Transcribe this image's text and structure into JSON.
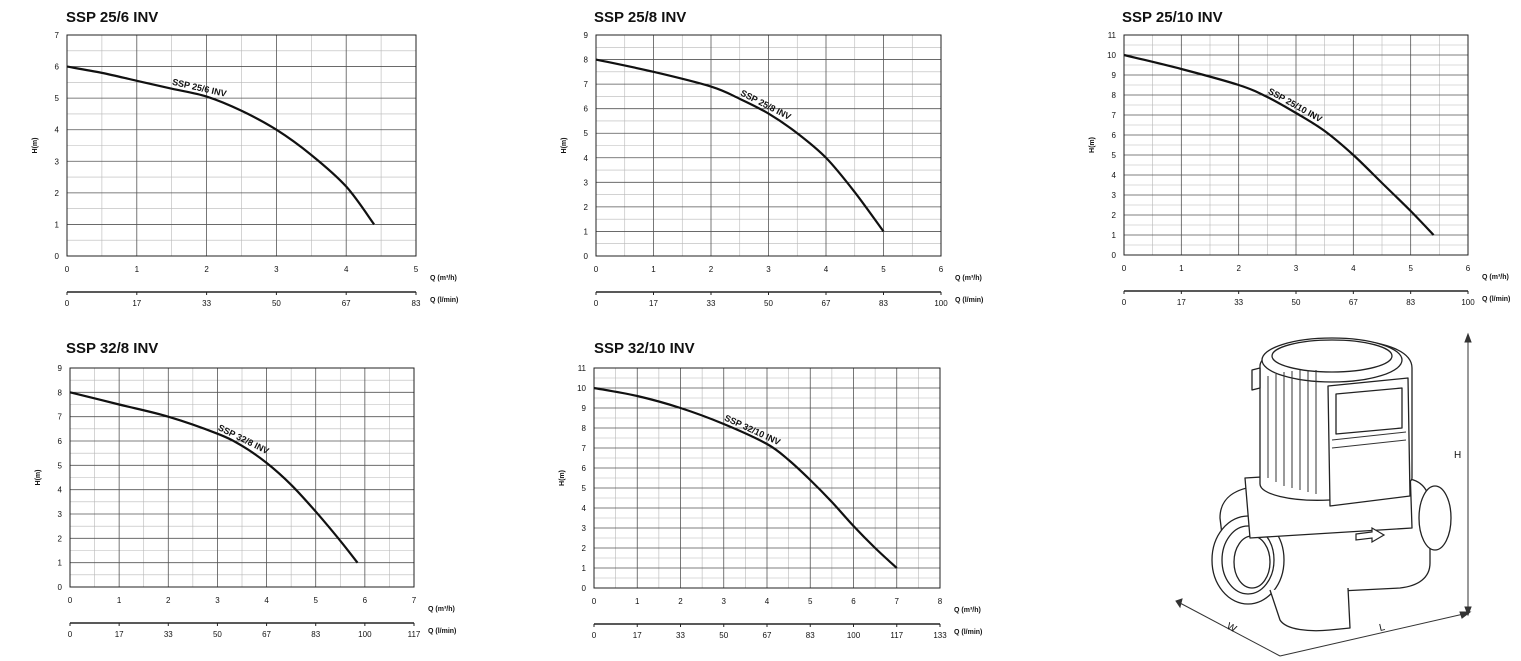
{
  "chart_data": [
    {
      "type": "line",
      "title": "SSP 25/6 INV",
      "xlabel": "Q (m³/h)",
      "x2label": "Q (l/min)",
      "ylabel": "H(m)",
      "xlim": [
        0,
        5
      ],
      "ylim": [
        0,
        7
      ],
      "x_ticks": [
        0,
        1,
        2,
        3,
        4,
        5
      ],
      "y_ticks": [
        0,
        1,
        2,
        3,
        4,
        5,
        6,
        7
      ],
      "x2_ticks": [
        "0",
        "17",
        "33",
        "50",
        "67",
        "83"
      ],
      "grid": true,
      "series": [
        {
          "name": "SSP 25/6 INV",
          "x": [
            0,
            0.5,
            1,
            1.5,
            2,
            2.5,
            3,
            3.5,
            4,
            4.4
          ],
          "y": [
            6,
            5.8,
            5.55,
            5.3,
            5.05,
            4.6,
            4.0,
            3.2,
            2.2,
            1.0
          ]
        }
      ]
    },
    {
      "type": "line",
      "title": "SSP 25/8 INV",
      "xlabel": "Q (m³/h)",
      "x2label": "Q (l/min)",
      "ylabel": "H(m)",
      "xlim": [
        0,
        6
      ],
      "ylim": [
        0,
        9
      ],
      "x_ticks": [
        0,
        1,
        2,
        3,
        4,
        5,
        6
      ],
      "y_ticks": [
        0,
        1,
        2,
        3,
        4,
        5,
        6,
        7,
        8,
        9
      ],
      "x2_ticks": [
        "0",
        "17",
        "33",
        "50",
        "67",
        "83",
        "100"
      ],
      "grid": true,
      "series": [
        {
          "name": "SSP 25/8 INV",
          "x": [
            0,
            1,
            2,
            2.5,
            3,
            3.5,
            4,
            4.5,
            5
          ],
          "y": [
            8,
            7.5,
            6.9,
            6.4,
            5.8,
            5.0,
            4.0,
            2.6,
            1.0
          ]
        }
      ]
    },
    {
      "type": "line",
      "title": "SSP 25/10 INV",
      "xlabel": "Q (m³/h)",
      "x2label": "Q (l/min)",
      "ylabel": "H(m)",
      "xlim": [
        0,
        6
      ],
      "ylim": [
        0,
        11
      ],
      "x_ticks": [
        0,
        1,
        2,
        3,
        4,
        5,
        6
      ],
      "y_ticks": [
        0,
        1,
        2,
        3,
        4,
        5,
        6,
        7,
        8,
        9,
        10,
        11
      ],
      "x2_ticks": [
        "0",
        "17",
        "33",
        "50",
        "67",
        "83",
        "100"
      ],
      "grid": true,
      "series": [
        {
          "name": "SSP 25/10 INV",
          "x": [
            0,
            1,
            2,
            2.5,
            3,
            3.5,
            4,
            4.5,
            5,
            5.4
          ],
          "y": [
            10,
            9.3,
            8.5,
            7.9,
            7.1,
            6.2,
            5.0,
            3.6,
            2.2,
            1.0
          ]
        }
      ]
    },
    {
      "type": "line",
      "title": "SSP 32/8 INV",
      "xlabel": "Q (m³/h)",
      "x2label": "Q (l/min)",
      "ylabel": "H(m)",
      "xlim": [
        0,
        7
      ],
      "ylim": [
        0,
        9
      ],
      "x_ticks": [
        0,
        1,
        2,
        3,
        4,
        5,
        6,
        7
      ],
      "y_ticks": [
        0,
        1,
        2,
        3,
        4,
        5,
        6,
        7,
        8,
        9
      ],
      "x2_ticks": [
        "0",
        "17",
        "33",
        "50",
        "67",
        "83",
        "100",
        "117"
      ],
      "grid": true,
      "series": [
        {
          "name": "SSP 32/8 INV",
          "x": [
            0,
            1,
            2,
            3,
            3.5,
            4,
            4.5,
            5,
            5.5,
            5.85
          ],
          "y": [
            8,
            7.5,
            7.0,
            6.3,
            5.8,
            5.1,
            4.2,
            3.1,
            1.9,
            1.0
          ]
        }
      ]
    },
    {
      "type": "line",
      "title": "SSP 32/10 INV",
      "xlabel": "Q (m³/h)",
      "x2label": "Q (l/min)",
      "ylabel": "H(m)",
      "xlim": [
        0,
        8
      ],
      "ylim": [
        0,
        11
      ],
      "x_ticks": [
        0,
        1,
        2,
        3,
        4,
        5,
        6,
        7,
        8
      ],
      "y_ticks": [
        0,
        1,
        2,
        3,
        4,
        5,
        6,
        7,
        8,
        9,
        10,
        11
      ],
      "x2_ticks": [
        "0",
        "17",
        "33",
        "50",
        "67",
        "83",
        "100",
        "117",
        "133"
      ],
      "grid": true,
      "series": [
        {
          "name": "SSP 32/10 INV",
          "x": [
            0,
            1,
            2,
            3,
            4,
            4.5,
            5,
            5.5,
            6,
            6.5,
            7
          ],
          "y": [
            10,
            9.6,
            9.0,
            8.2,
            7.2,
            6.4,
            5.4,
            4.3,
            3.1,
            2.0,
            1.0
          ]
        }
      ]
    }
  ],
  "pump_diagram": {
    "dimension_labels": {
      "height": "H",
      "width": "W",
      "length": "L"
    }
  }
}
